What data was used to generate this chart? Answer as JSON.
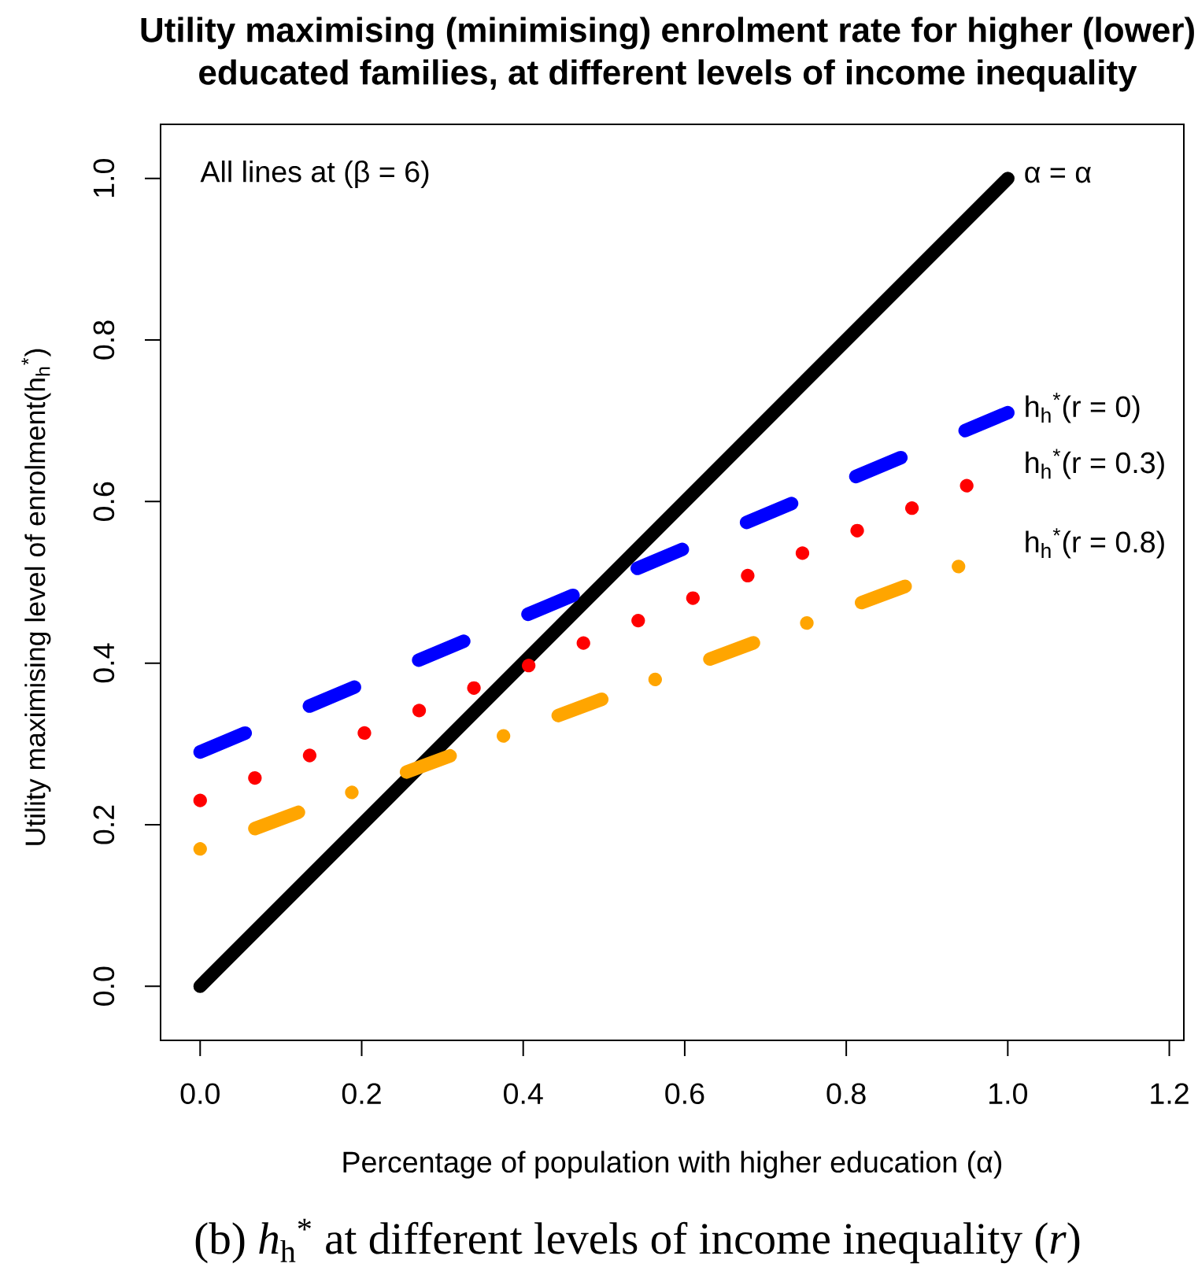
{
  "chart_data": {
    "type": "line",
    "title": "Utility maximising (minimising) enrolment rate for higher (lower) educated families, at different levels of income inequality",
    "xlabel": "Percentage of population with higher education (α)",
    "ylabel": "Utility maximising level of enrolment(h$_{h}$$^{*}$)",
    "annotations": [
      "All lines at (β = 6)",
      "(b) *h*$_{h}$$^{*}$ at different levels of income inequality (*r*)"
    ],
    "xlim": [
      -0.049,
      1.218
    ],
    "ylim": [
      -0.067,
      1.067
    ],
    "xticks": [
      {
        "value": 0,
        "label": "0.0"
      },
      0.2,
      0.4,
      0.6,
      0.8,
      {
        "value": 1,
        "label": "1.0"
      },
      1.2
    ],
    "yticks": [
      {
        "value": 0,
        "label": "0.0"
      },
      0.2,
      0.4,
      0.6,
      0.8,
      {
        "value": 1,
        "label": "1.0"
      }
    ],
    "series": [
      {
        "name": "α = α",
        "color": "#000000",
        "x": [
          0,
          1
        ],
        "values": [
          0,
          1
        ],
        "line_style": "solid"
      },
      {
        "name": "h$_{h}$$^{*}$(r = 0)",
        "color": "#0000ff",
        "x": [
          0,
          1
        ],
        "values": [
          0.29,
          0.71
        ],
        "line_style": "dashed"
      },
      {
        "name": "h$_{h}$$^{*}$(r = 0.3)",
        "color": "#ff0000",
        "x": [
          0,
          0.95
        ],
        "values": [
          0.23,
          0.62
        ],
        "line_style": "dotted"
      },
      {
        "name": "h$_{h}$$^{*}$(r = 0.8)",
        "color": "#ffa500",
        "x": [
          0,
          0.94
        ],
        "values": [
          0.17,
          0.52
        ],
        "line_style": "dashdot"
      }
    ]
  }
}
